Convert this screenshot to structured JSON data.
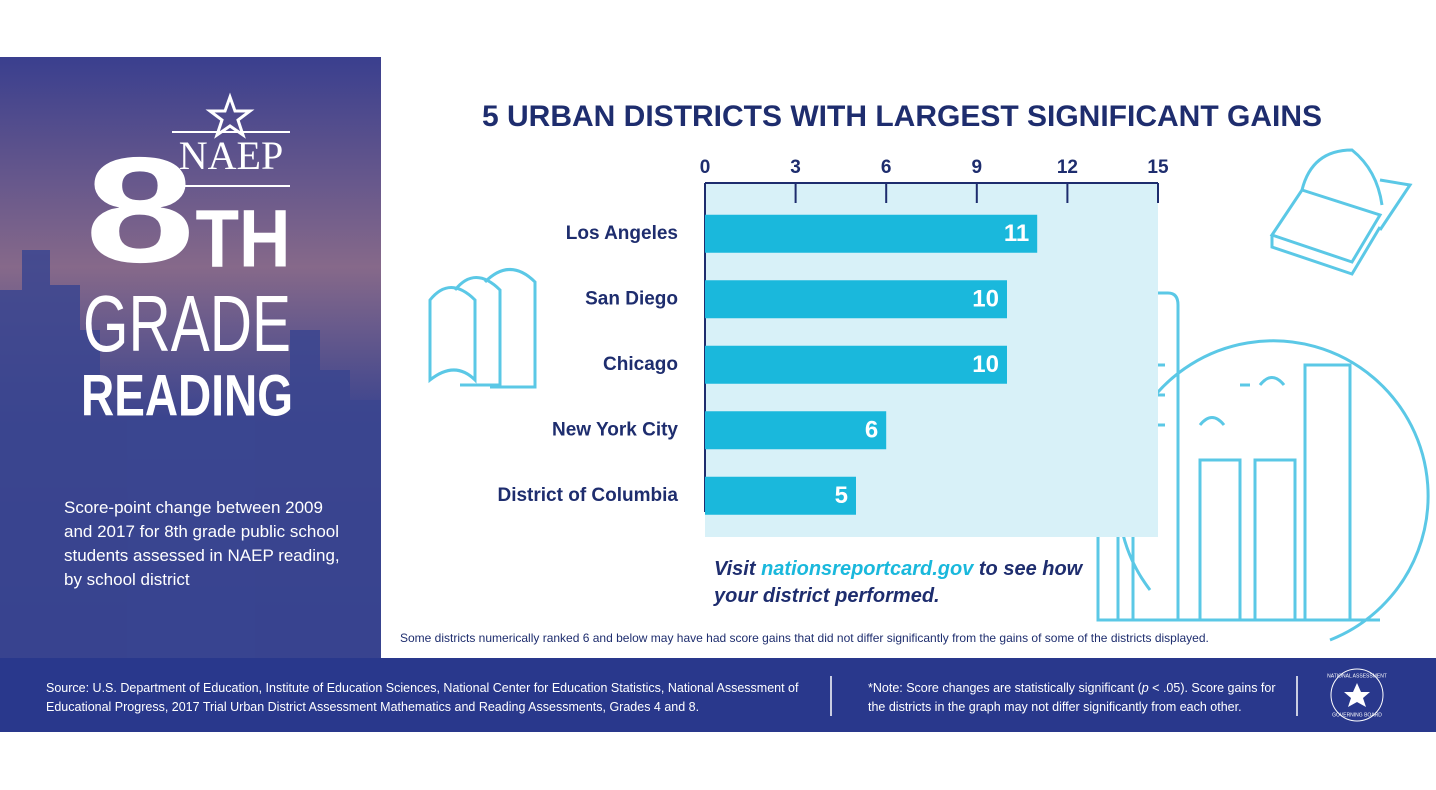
{
  "sidebar": {
    "logo": "NAEP",
    "grade_number": "8",
    "grade_suffix": "TH",
    "grade_word": "GRADE",
    "subject": "READING",
    "description": "Score-point change between 2009 and 2017 for 8th grade public school students assessed in NAEP reading, by school district"
  },
  "chart_data": {
    "type": "bar",
    "orientation": "horizontal",
    "title": "5 URBAN DISTRICTS WITH LARGEST SIGNIFICANT GAINS",
    "categories": [
      "Los Angeles",
      "San Diego",
      "Chicago",
      "New York City",
      "District of Columbia"
    ],
    "values": [
      11,
      10,
      10,
      6,
      5
    ],
    "color": "#1ab8dc",
    "xlim": [
      0,
      15
    ],
    "xticks": [
      0,
      3,
      6,
      9,
      12,
      15
    ]
  },
  "callout": {
    "before": "Visit ",
    "link": "nationsreportcard.gov",
    "after": " to see how your district performed."
  },
  "note": "Some districts numerically ranked 6 and below may have had score gains that did not differ significantly from the gains of some of the districts displayed.",
  "footer": {
    "source": "Source: U.S. Department of Education, Institute of Education Sciences, National Center for Education Statistics, National Assessment of Educational Progress, 2017 Trial Urban District Assessment Mathematics and Reading Assessments, Grades 4 and 8.",
    "significance_before": "*Note: Score changes are statistically significant (",
    "significance_p": "p",
    "significance_after": " < .05). Score gains for the districts in the graph may not differ significantly from each other.",
    "logo_top": "NATIONAL ASSESSMENT",
    "logo_bottom": "GOVERNING BOARD"
  }
}
